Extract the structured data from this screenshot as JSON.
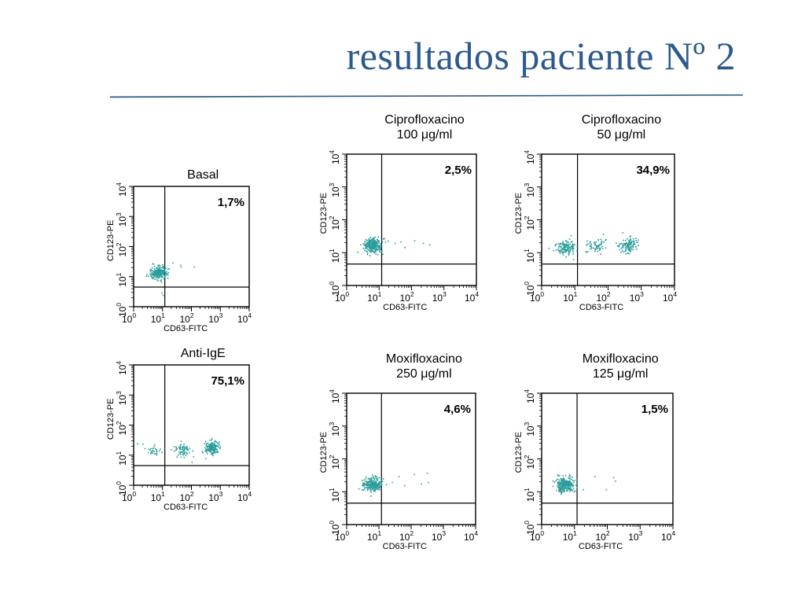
{
  "slide": {
    "title": "resultados paciente Nº 2",
    "accent": "#2d5a8e"
  },
  "chart_data": [
    {
      "type": "scatter",
      "label_lines": [
        "Basal"
      ],
      "percent": "1,7%",
      "xlabel": "CD63-FITC",
      "ylabel": "CD123-PE",
      "xscale": "log",
      "yscale": "log",
      "xlim": [
        1,
        10000
      ],
      "ylim": [
        1,
        10000
      ],
      "gate_x": 12,
      "gate_y": 4.5,
      "point_color": "#2a9d9a",
      "clusters": [
        {
          "x": 7,
          "y": 14,
          "n": 240
        }
      ],
      "scatter_points": [
        [
          40,
          25
        ],
        [
          42,
          22
        ],
        [
          120,
          22
        ],
        [
          9,
          3
        ],
        [
          10,
          2.5
        ],
        [
          22,
          30
        ]
      ]
    },
    {
      "type": "scatter",
      "label_lines": [
        "Anti-IgE"
      ],
      "percent": "75,1%",
      "xlabel": "CD63-FITC",
      "ylabel": "CD123-PE",
      "xscale": "log",
      "yscale": "log",
      "xlim": [
        1,
        10000
      ],
      "ylim": [
        1,
        10000
      ],
      "gate_x": 12,
      "gate_y": 4.5,
      "point_color": "#2a9d9a",
      "clusters": [
        {
          "x": 500,
          "y": 18,
          "n": 170
        },
        {
          "x": 50,
          "y": 15,
          "n": 70
        },
        {
          "x": 5,
          "y": 15,
          "n": 30
        }
      ],
      "scatter_points": [
        [
          1.3,
          25
        ],
        [
          2,
          24
        ],
        [
          30,
          9
        ],
        [
          100,
          6
        ],
        [
          300,
          8
        ]
      ]
    },
    {
      "type": "scatter",
      "label_lines": [
        "Ciprofloxacino",
        "100 μg/ml"
      ],
      "percent": "2,5%",
      "xlabel": "CD63-FITC",
      "ylabel": "CD123-PE",
      "xscale": "log",
      "yscale": "log",
      "xlim": [
        1,
        10000
      ],
      "ylim": [
        1,
        10000
      ],
      "gate_x": 12,
      "gate_y": 4.5,
      "point_color": "#2a9d9a",
      "clusters": [
        {
          "x": 6,
          "y": 17,
          "n": 260
        }
      ],
      "scatter_points": [
        [
          30,
          20
        ],
        [
          45,
          22
        ],
        [
          120,
          24
        ],
        [
          220,
          20
        ],
        [
          350,
          18
        ],
        [
          60,
          15
        ],
        [
          14,
          28
        ]
      ]
    },
    {
      "type": "scatter",
      "label_lines": [
        "Ciprofloxacino",
        "50 μg/ml"
      ],
      "percent": "34,9%",
      "xlabel": "CD63-FITC",
      "ylabel": "CD123-PE",
      "xscale": "log",
      "yscale": "log",
      "xlim": [
        1,
        10000
      ],
      "ylim": [
        1,
        10000
      ],
      "gate_x": 12,
      "gate_y": 4.5,
      "point_color": "#2a9d9a",
      "clusters": [
        {
          "x": 5,
          "y": 15,
          "n": 130
        },
        {
          "x": 400,
          "y": 18,
          "n": 120
        },
        {
          "x": 45,
          "y": 16,
          "n": 60
        }
      ],
      "scatter_points": [
        [
          1.6,
          14
        ],
        [
          2.2,
          12
        ],
        [
          80,
          25
        ]
      ]
    },
    {
      "type": "scatter",
      "label_lines": [
        "Moxifloxacino",
        "250 μg/ml"
      ],
      "percent": "4,6%",
      "xlabel": "CD63-FITC",
      "ylabel": "CD123-PE",
      "xscale": "log",
      "yscale": "log",
      "xlim": [
        1,
        10000
      ],
      "ylim": [
        1,
        10000
      ],
      "gate_x": 12,
      "gate_y": 4.5,
      "point_color": "#2a9d9a",
      "clusters": [
        {
          "x": 6,
          "y": 17,
          "n": 250
        }
      ],
      "scatter_points": [
        [
          25,
          20
        ],
        [
          40,
          30
        ],
        [
          120,
          35
        ],
        [
          300,
          38
        ],
        [
          330,
          20
        ],
        [
          60,
          16
        ],
        [
          200,
          18
        ]
      ]
    },
    {
      "type": "scatter",
      "label_lines": [
        "Moxifloxacino",
        "125 μg/ml"
      ],
      "percent": "1,5%",
      "xlabel": "CD63-FITC",
      "ylabel": "CD123-PE",
      "xscale": "log",
      "yscale": "log",
      "xlim": [
        1,
        10000
      ],
      "ylim": [
        1,
        10000
      ],
      "gate_x": 12,
      "gate_y": 4.5,
      "point_color": "#2a9d9a",
      "clusters": [
        {
          "x": 5,
          "y": 17,
          "n": 270
        }
      ],
      "scatter_points": [
        [
          40,
          30
        ],
        [
          90,
          12
        ],
        [
          150,
          28
        ],
        [
          170,
          22
        ],
        [
          18,
          12
        ]
      ]
    }
  ],
  "axis_ticks": {
    "base": "10",
    "exponents": [
      "0",
      "1",
      "2",
      "3",
      "4"
    ]
  }
}
